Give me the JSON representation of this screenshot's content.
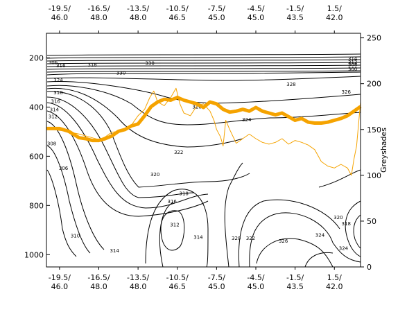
{
  "chart_data": {
    "type": "line",
    "title": "",
    "xlabel": "",
    "ylabel_left": "",
    "ylabel_right": "Greyshades",
    "x_tick_labels": [
      {
        "lon": "-19.5/",
        "lat": "46.0"
      },
      {
        "lon": "-16.5/",
        "lat": "48.0"
      },
      {
        "lon": "-13.5/",
        "lat": "48.0"
      },
      {
        "lon": "-10.5/",
        "lat": "46.5"
      },
      {
        "lon": "-7.5/",
        "lat": "45.0"
      },
      {
        "lon": "-4.5/",
        "lat": "45.0"
      },
      {
        "lon": "-1.5/",
        "lat": "43.5"
      },
      {
        "lon": "1.5/",
        "lat": "42.0"
      }
    ],
    "x_tick_positions": [
      -19.5,
      -16.5,
      -13.5,
      -10.5,
      -7.5,
      -4.5,
      -1.5,
      1.5
    ],
    "xlim": [
      -20.5,
      3.5
    ],
    "y_left": {
      "ticks": [
        200,
        400,
        600,
        800,
        1000
      ],
      "lim": [
        1050,
        100
      ],
      "reversed": true
    },
    "y_right": {
      "ticks": [
        0,
        50,
        100,
        150,
        200,
        250
      ],
      "lim": [
        0,
        255
      ]
    },
    "contour_labels": [
      {
        "text": "306",
        "x": -20.0,
        "y": 220
      },
      {
        "text": "316",
        "x": -19.4,
        "y": 232
      },
      {
        "text": "318",
        "x": -17.0,
        "y": 230
      },
      {
        "text": "330",
        "x": -12.6,
        "y": 222
      },
      {
        "text": "314",
        "x": 2.9,
        "y": 205
      },
      {
        "text": "312",
        "x": 2.9,
        "y": 218
      },
      {
        "text": "308",
        "x": 2.9,
        "y": 228
      },
      {
        "text": "300",
        "x": 2.9,
        "y": 247
      },
      {
        "text": "330",
        "x": -14.8,
        "y": 262
      },
      {
        "text": "324",
        "x": -19.6,
        "y": 292
      },
      {
        "text": "328",
        "x": -1.8,
        "y": 308
      },
      {
        "text": "326",
        "x": 2.4,
        "y": 340
      },
      {
        "text": "318",
        "x": -19.6,
        "y": 342
      },
      {
        "text": "316",
        "x": -19.8,
        "y": 378
      },
      {
        "text": "314",
        "x": -19.9,
        "y": 412
      },
      {
        "text": "312",
        "x": -20.0,
        "y": 440
      },
      {
        "text": "326",
        "x": -9.0,
        "y": 400
      },
      {
        "text": "324",
        "x": -5.2,
        "y": 452
      },
      {
        "text": "322",
        "x": -10.4,
        "y": 585
      },
      {
        "text": "308",
        "x": -20.1,
        "y": 550
      },
      {
        "text": "306",
        "x": -19.2,
        "y": 650
      },
      {
        "text": "320",
        "x": -12.2,
        "y": 675
      },
      {
        "text": "318",
        "x": -10.0,
        "y": 752
      },
      {
        "text": "316",
        "x": -10.9,
        "y": 785
      },
      {
        "text": "312",
        "x": -10.7,
        "y": 880
      },
      {
        "text": "314",
        "x": -8.9,
        "y": 930
      },
      {
        "text": "310",
        "x": -18.3,
        "y": 925
      },
      {
        "text": "314",
        "x": -15.3,
        "y": 985
      },
      {
        "text": "320",
        "x": -6.0,
        "y": 935
      },
      {
        "text": "322",
        "x": -4.9,
        "y": 935
      },
      {
        "text": "326",
        "x": -2.4,
        "y": 945
      },
      {
        "text": "324",
        "x": 0.4,
        "y": 922
      },
      {
        "text": "320",
        "x": 1.8,
        "y": 850
      },
      {
        "text": "318",
        "x": 2.4,
        "y": 875
      },
      {
        "text": "324",
        "x": 2.2,
        "y": 975
      }
    ],
    "series": [
      {
        "color": "#f5a300",
        "axis": "right",
        "x": [
          -20.5,
          -19.5,
          -18.8,
          -18.0,
          -17.5,
          -17.0,
          -16.5,
          -16.0,
          -15.5,
          -15.0,
          -14.5,
          -14.0,
          -13.5,
          -13.0,
          -12.5,
          -12.0,
          -11.5,
          -11.0,
          -10.5,
          -10.0,
          -9.5,
          -9.0,
          -8.5,
          -8.0,
          -7.5,
          -7.0,
          -6.5,
          -6.0,
          -5.5,
          -5.0,
          -4.5,
          -4.0,
          -3.5,
          -3.0,
          -2.5,
          -2.0,
          -1.5,
          -1.0,
          -0.5,
          0.0,
          0.5,
          1.0,
          1.5,
          2.0,
          2.5,
          3.0,
          3.5
        ],
        "y": [
          151,
          151,
          148,
          141,
          140,
          138,
          138,
          140,
          143,
          148,
          150,
          154,
          156,
          165,
          175,
          180,
          183,
          182,
          185,
          182,
          180,
          178,
          174,
          180,
          178,
          172,
          169,
          170,
          172,
          170,
          174,
          170,
          168,
          166,
          168,
          164,
          160,
          162,
          158,
          157,
          157,
          158,
          160,
          162,
          165,
          170,
          175
        ]
      },
      {
        "color": "#f5a300",
        "axis": "right",
        "x": [
          -20.0,
          -19.0,
          -18.0,
          -17.0,
          -16.5,
          -16.0,
          -15.5,
          -15.0,
          -14.5,
          -14.0,
          -13.5,
          -13.0,
          -12.6,
          -12.3,
          -12.0,
          -11.5,
          -11.0,
          -10.6,
          -10.3,
          -10.0,
          -9.5,
          -9.0,
          -8.5,
          -8.0,
          -7.7,
          -7.5,
          -7.2,
          -7.0,
          -6.8,
          -6.5,
          -6.0,
          -5.5,
          -5.0,
          -4.5,
          -4.0,
          -3.5,
          -3.0,
          -2.5,
          -2.0,
          -1.5,
          -1.0,
          -0.5,
          0.0,
          0.5,
          1.0,
          1.5,
          2.0,
          2.5,
          2.8,
          3.0,
          3.2,
          3.5
        ],
        "y": [
          150,
          148,
          145,
          141,
          139,
          142,
          147,
          148,
          150,
          155,
          165,
          172,
          185,
          192,
          180,
          176,
          185,
          195,
          178,
          168,
          165,
          176,
          178,
          170,
          160,
          150,
          142,
          132,
          160,
          150,
          135,
          140,
          145,
          140,
          136,
          134,
          136,
          140,
          134,
          138,
          136,
          133,
          128,
          115,
          110,
          108,
          112,
          108,
          100,
          118,
          132,
          180
        ]
      }
    ],
    "grid": false,
    "legend": "none"
  }
}
